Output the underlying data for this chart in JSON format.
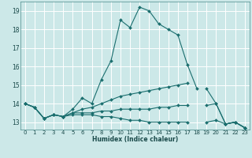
{
  "xlabel": "Humidex (Indice chaleur)",
  "xlim": [
    -0.5,
    23.5
  ],
  "ylim": [
    12.6,
    19.5
  ],
  "yticks": [
    13,
    14,
    15,
    16,
    17,
    18,
    19
  ],
  "xticks": [
    0,
    1,
    2,
    3,
    4,
    5,
    6,
    7,
    8,
    9,
    10,
    11,
    12,
    13,
    14,
    15,
    16,
    17,
    18,
    19,
    20,
    21,
    22,
    23
  ],
  "bg_color": "#cce8e8",
  "grid_color": "#b0d8d8",
  "line_color": "#1a6e6e",
  "lines": [
    {
      "x": [
        0,
        1,
        2,
        3,
        4,
        5,
        6,
        7,
        8,
        9,
        10,
        11,
        12,
        13,
        14,
        15,
        16,
        17,
        18,
        19,
        20,
        21,
        22,
        23
      ],
      "y": [
        14.0,
        13.8,
        13.2,
        13.4,
        13.3,
        13.7,
        14.3,
        14.0,
        15.3,
        16.3,
        18.5,
        18.1,
        19.2,
        19.0,
        18.3,
        18.0,
        17.7,
        16.1,
        14.8,
        null,
        null,
        12.9,
        13.0,
        12.7
      ]
    },
    {
      "x": [
        0,
        1,
        2,
        3,
        4,
        5,
        6,
        7,
        8,
        9,
        10,
        11,
        12,
        13,
        14,
        15,
        16,
        17,
        18,
        19,
        20,
        21,
        22,
        23
      ],
      "y": [
        14.0,
        13.8,
        13.2,
        13.4,
        13.3,
        13.5,
        13.7,
        13.8,
        14.0,
        14.2,
        14.4,
        14.5,
        14.6,
        14.7,
        14.8,
        14.9,
        15.0,
        15.1,
        null,
        14.8,
        14.0,
        12.9,
        13.0,
        12.7
      ]
    },
    {
      "x": [
        0,
        1,
        2,
        3,
        4,
        5,
        6,
        7,
        8,
        9,
        10,
        11,
        12,
        13,
        14,
        15,
        16,
        17,
        18,
        19,
        20,
        21,
        22,
        23
      ],
      "y": [
        14.0,
        13.8,
        13.2,
        13.4,
        13.3,
        13.5,
        13.5,
        13.5,
        13.6,
        13.6,
        13.7,
        13.7,
        13.7,
        13.7,
        13.8,
        13.8,
        13.9,
        13.9,
        null,
        13.9,
        14.0,
        12.9,
        13.0,
        12.7
      ]
    },
    {
      "x": [
        0,
        1,
        2,
        3,
        4,
        5,
        6,
        7,
        8,
        9,
        10,
        11,
        12,
        13,
        14,
        15,
        16,
        17,
        18,
        19,
        20,
        21,
        22,
        23
      ],
      "y": [
        14.0,
        13.8,
        13.2,
        13.4,
        13.3,
        13.4,
        13.4,
        13.4,
        13.3,
        13.3,
        13.2,
        13.1,
        13.1,
        13.0,
        13.0,
        13.0,
        13.0,
        13.0,
        null,
        13.0,
        13.1,
        12.9,
        13.0,
        12.7
      ]
    }
  ]
}
